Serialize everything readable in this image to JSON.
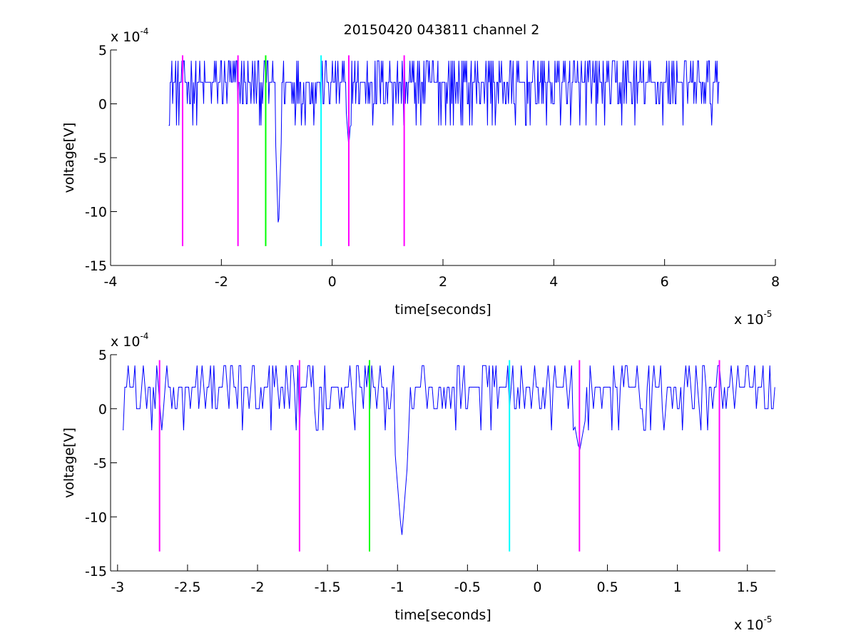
{
  "title": "20150420 043811 channel 2",
  "chart_data": [
    {
      "type": "line",
      "xlabel": "time[seconds]",
      "ylabel": "voltage[V]",
      "x_exponent": {
        "base": "x 10",
        "power": "-5"
      },
      "y_exponent": {
        "base": "x 10",
        "power": "-4"
      },
      "xlim": [
        -4,
        8
      ],
      "ylim": [
        -15,
        5
      ],
      "xticks": [
        -4,
        -2,
        0,
        2,
        4,
        6,
        8
      ],
      "xtick_labels": [
        "-4",
        "-2",
        "0",
        "2",
        "4",
        "6",
        "8"
      ],
      "yticks": [
        -15,
        -10,
        -5,
        0,
        5
      ],
      "ytick_labels": [
        "-15",
        "-10",
        "-5",
        "0",
        "5"
      ],
      "series": [
        {
          "color": "#0000ff",
          "x_range": [
            -2.95,
            7.0
          ],
          "noise": true,
          "dips": [
            [
              -0.97,
              -12
            ],
            [
              0.3,
              -4
            ]
          ]
        }
      ],
      "markers": [
        {
          "x": -2.7,
          "color": "#ff00ff"
        },
        {
          "x": -1.7,
          "color": "#ff00ff"
        },
        {
          "x": -1.2,
          "color": "#00ff00"
        },
        {
          "x": -0.2,
          "color": "#00ffff"
        },
        {
          "x": 0.3,
          "color": "#ff00ff"
        },
        {
          "x": 1.3,
          "color": "#ff00ff"
        }
      ],
      "marker_y_range": [
        -13.2,
        4.5
      ]
    },
    {
      "type": "line",
      "xlabel": "time[seconds]",
      "ylabel": "voltage[V]",
      "x_exponent": {
        "base": "x 10",
        "power": "-5"
      },
      "y_exponent": {
        "base": "x 10",
        "power": "-4"
      },
      "xlim": [
        -3.05,
        1.7
      ],
      "ylim": [
        -15,
        5
      ],
      "xticks": [
        -3,
        -2.5,
        -2,
        -1.5,
        -1,
        -0.5,
        0,
        0.5,
        1,
        1.5
      ],
      "xtick_labels": [
        "-3",
        "-2.5",
        "-2",
        "-1.5",
        "-1",
        "-0.5",
        "0",
        "0.5",
        "1",
        "1.5"
      ],
      "yticks": [
        -15,
        -10,
        -5,
        0,
        5
      ],
      "ytick_labels": [
        "-15",
        "-10",
        "-5",
        "0",
        "5"
      ],
      "series": [
        {
          "color": "#0000ff",
          "x_range": [
            -2.96,
            1.7
          ],
          "noise": true,
          "dips": [
            [
              -0.97,
              -12
            ],
            [
              0.3,
              -4
            ]
          ]
        }
      ],
      "markers": [
        {
          "x": -2.7,
          "color": "#ff00ff"
        },
        {
          "x": -1.7,
          "color": "#ff00ff"
        },
        {
          "x": -1.2,
          "color": "#00ff00"
        },
        {
          "x": -0.2,
          "color": "#00ffff"
        },
        {
          "x": 0.3,
          "color": "#ff00ff"
        },
        {
          "x": 1.3,
          "color": "#ff00ff"
        }
      ],
      "marker_y_range": [
        -13.2,
        4.5
      ]
    }
  ]
}
